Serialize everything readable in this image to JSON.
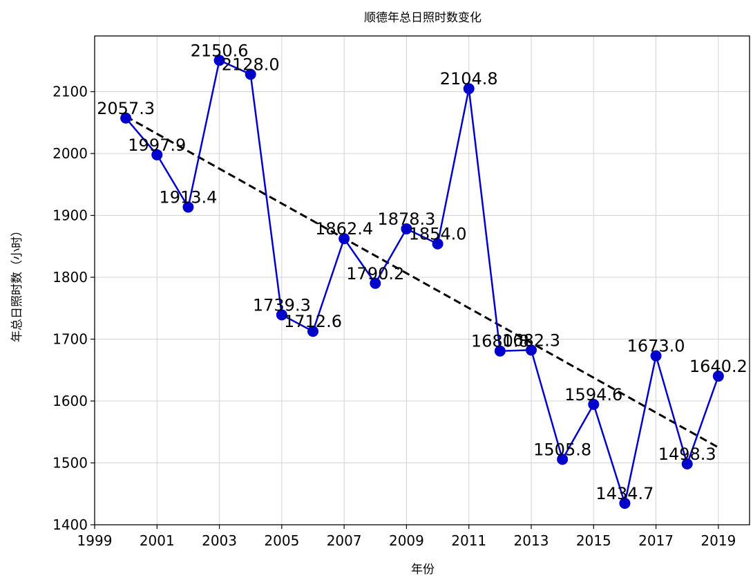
{
  "chart_data": {
    "type": "line",
    "title": "顺德年总日照时数变化",
    "xlabel": "年份",
    "ylabel": "年总日照时数（小时）",
    "x": [
      2000,
      2001,
      2002,
      2003,
      2004,
      2005,
      2006,
      2007,
      2008,
      2009,
      2010,
      2011,
      2012,
      2013,
      2014,
      2015,
      2016,
      2017,
      2018,
      2019
    ],
    "series": [
      {
        "values": [
          2057.3,
          1997.9,
          1913.4,
          2150.6,
          2128.0,
          1739.3,
          1712.6,
          1862.4,
          1790.2,
          1878.3,
          1854.0,
          2104.8,
          1680.8,
          1682.3,
          1505.8,
          1594.6,
          1434.7,
          1673.0,
          1498.3,
          1640.2
        ],
        "labels": [
          "2057.3",
          "1997.9",
          "1913.4",
          "2150.6",
          "2128.0",
          "1739.3",
          "1712.6",
          "1862.4",
          "1790.2",
          "1878.3",
          "1854.0",
          "2104.8",
          "1680.8",
          "1682.3",
          "1505.8",
          "1594.6",
          "1434.7",
          "1673.0",
          "1498.3",
          "1640.2"
        ],
        "color": "#0000cd"
      }
    ],
    "trend": {
      "start": [
        2000,
        2060
      ],
      "end": [
        2019,
        1525
      ],
      "color": "#000000",
      "style": "dashed"
    },
    "xlim": [
      1999,
      2020
    ],
    "ylim": [
      1400,
      2190
    ],
    "xticks": [
      "1999",
      "2001",
      "2003",
      "2005",
      "2007",
      "2009",
      "2011",
      "2013",
      "2015",
      "2017",
      "2019"
    ],
    "yticks": [
      "1400",
      "1500",
      "1600",
      "1700",
      "1800",
      "1900",
      "2000",
      "2100"
    ],
    "grid": true
  }
}
